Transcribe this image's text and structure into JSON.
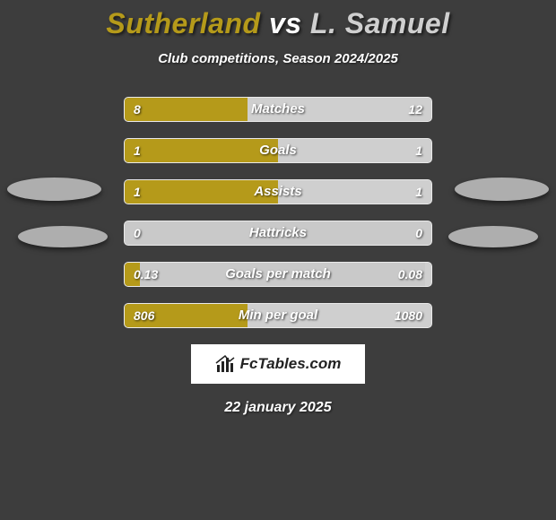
{
  "title": {
    "player1": "Sutherland",
    "vs": "vs",
    "player2": "L. Samuel",
    "player1_color": "#b59a1a",
    "player2_color": "#cfcfcf"
  },
  "subtitle": "Club competitions, Season 2024/2025",
  "background_color": "#3d3d3d",
  "bar_bg_color": "#c9c9c9",
  "bar_border_color": "#eaeaea",
  "stats": [
    {
      "label": "Matches",
      "left_val": "8",
      "right_val": "12",
      "left_pct": 40,
      "right_pct": 60
    },
    {
      "label": "Goals",
      "left_val": "1",
      "right_val": "1",
      "left_pct": 50,
      "right_pct": 50
    },
    {
      "label": "Assists",
      "left_val": "1",
      "right_val": "1",
      "left_pct": 50,
      "right_pct": 50
    },
    {
      "label": "Hattricks",
      "left_val": "0",
      "right_val": "0",
      "left_pct": 0,
      "right_pct": 0
    },
    {
      "label": "Goals per match",
      "left_val": "0.13",
      "right_val": "0.08",
      "left_pct": 5,
      "right_pct": 2
    },
    {
      "label": "Min per goal",
      "left_val": "806",
      "right_val": "1080",
      "left_pct": 40,
      "right_pct": 60
    }
  ],
  "logo_text": "FcTables.com",
  "date": "22 january 2025"
}
